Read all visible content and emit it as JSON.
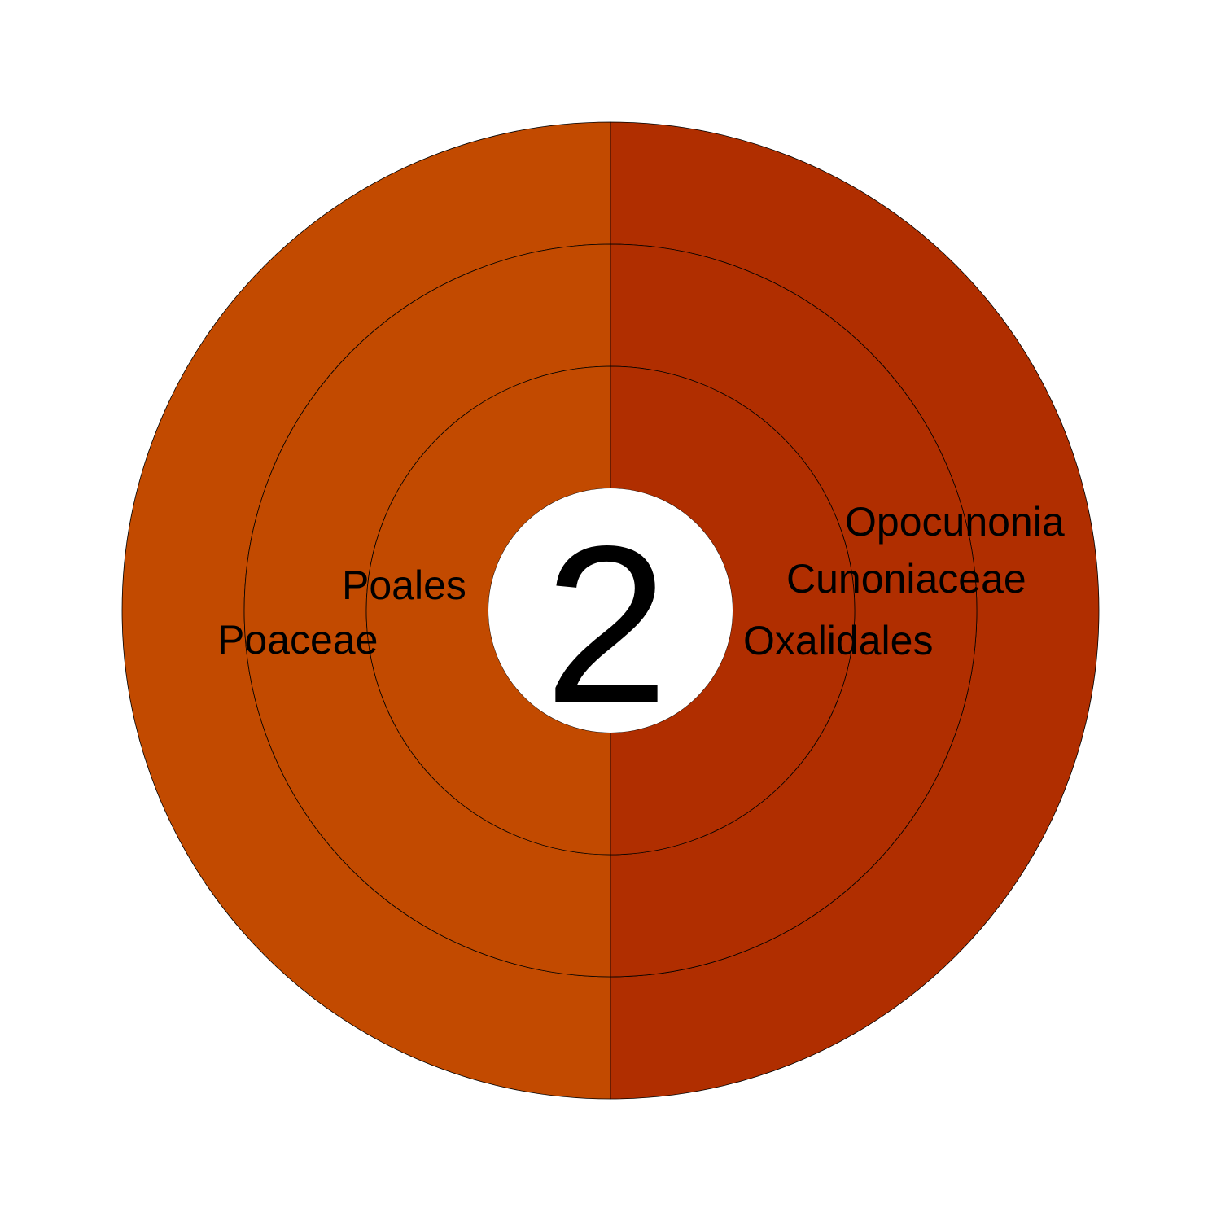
{
  "center_label": "2",
  "colors": {
    "left_half": "#C24A00",
    "right_half": "#B02E00",
    "center_fill": "#FFFFFF",
    "outline": "#000000",
    "background": "#FFFFFF"
  },
  "chart_data": {
    "type": "sunburst",
    "total": "2",
    "rings": [
      {
        "level": "order",
        "left": "Poales",
        "right": "Oxalidales"
      },
      {
        "level": "family",
        "left": "Poaceae",
        "right": "Cunoniaceae"
      },
      {
        "level": "genus",
        "left": "",
        "right": "Opocunonia"
      }
    ],
    "branches": [
      {
        "side": "left",
        "path": [
          "Poales",
          "Poaceae"
        ],
        "color": "#C24A00"
      },
      {
        "side": "right",
        "path": [
          "Oxalidales",
          "Cunoniaceae",
          "Opocunonia"
        ],
        "color": "#B02E00"
      }
    ]
  }
}
